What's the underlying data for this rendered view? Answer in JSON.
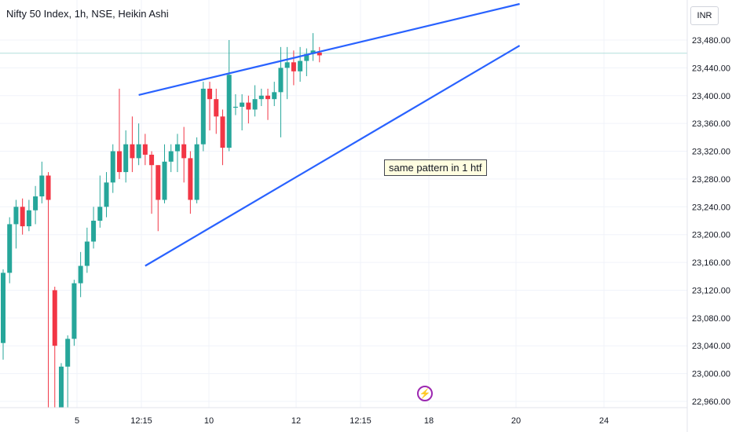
{
  "header": {
    "title": "Nifty 50 Index, 1h, NSE, Heikin Ashi",
    "currency": "INR"
  },
  "annotation": {
    "note": "same pattern in 1 htf"
  },
  "event_icon": "lightning-bolt-icon",
  "colors": {
    "up": "#26a69a",
    "down": "#f23645",
    "trendline": "#2962ff",
    "grid": "#f0f3fa",
    "axis_text": "#131722",
    "price_line": "#b2dfdb",
    "event": "#9c27b0"
  },
  "chart_data": {
    "type": "candlestick",
    "title": "Nifty 50 Index, 1h, NSE, Heikin Ashi",
    "x_ticks": [
      "5",
      "12:15",
      "10",
      "12",
      "12:15",
      "18",
      "20",
      "24"
    ],
    "y_ticks": [
      23480,
      23440,
      23400,
      23360,
      23320,
      23280,
      23240,
      23200,
      23160,
      23120,
      23080,
      23040,
      23000,
      22960
    ],
    "y_tick_labels": [
      "23,480.00",
      "23,440.00",
      "23,400.00",
      "23,360.00",
      "23,320.00",
      "23,280.00",
      "23,240.00",
      "23,200.00",
      "23,160.00",
      "23,120.00",
      "23,080.00",
      "23,040.00",
      "23,000.00",
      "22,960.00"
    ],
    "ylim": [
      22945,
      23540
    ],
    "grid": true,
    "current_price": 23461,
    "candles": [
      [
        23044,
        23145,
        23020,
        23150
      ],
      [
        23145,
        23215,
        23130,
        23225
      ],
      [
        23215,
        23240,
        23180,
        23250
      ],
      [
        23240,
        23212,
        23200,
        23252
      ],
      [
        23212,
        23235,
        23205,
        23250
      ],
      [
        23235,
        23255,
        23215,
        23270
      ],
      [
        23255,
        23285,
        23245,
        23305
      ],
      [
        23285,
        23250,
        22950,
        23290
      ],
      [
        23120,
        23040,
        22950,
        23125
      ],
      [
        22900,
        23010,
        22900,
        23015
      ],
      [
        23010,
        23050,
        22950,
        23055
      ],
      [
        23050,
        23130,
        23040,
        23135
      ],
      [
        23130,
        23155,
        23110,
        23175
      ],
      [
        23155,
        23190,
        23145,
        23210
      ],
      [
        23190,
        23220,
        23180,
        23240
      ],
      [
        23220,
        23240,
        23210,
        23285
      ],
      [
        23240,
        23275,
        23225,
        23290
      ],
      [
        23275,
        23320,
        23260,
        23330
      ],
      [
        23320,
        23290,
        23280,
        23410
      ],
      [
        23290,
        23330,
        23275,
        23350
      ],
      [
        23330,
        23310,
        23290,
        23370
      ],
      [
        23310,
        23330,
        23300,
        23360
      ],
      [
        23330,
        23315,
        23300,
        23345
      ],
      [
        23315,
        23300,
        23230,
        23320
      ],
      [
        23300,
        23250,
        23205,
        23300
      ],
      [
        23250,
        23305,
        23245,
        23330
      ],
      [
        23305,
        23320,
        23290,
        23330
      ],
      [
        23320,
        23330,
        23290,
        23345
      ],
      [
        23330,
        23310,
        23275,
        23355
      ],
      [
        23310,
        23250,
        23230,
        23320
      ],
      [
        23250,
        23330,
        23245,
        23340
      ],
      [
        23330,
        23410,
        23320,
        23420
      ],
      [
        23410,
        23395,
        23350,
        23420
      ],
      [
        23395,
        23370,
        23345,
        23410
      ],
      [
        23370,
        23325,
        23300,
        23380
      ],
      [
        23325,
        23430,
        23320,
        23480
      ],
      [
        23384,
        23384,
        23372,
        23402
      ],
      [
        23384,
        23390,
        23350,
        23402
      ],
      [
        23390,
        23380,
        23360,
        23400
      ],
      [
        23380,
        23395,
        23370,
        23415
      ],
      [
        23395,
        23400,
        23385,
        23410
      ],
      [
        23400,
        23395,
        23365,
        23410
      ],
      [
        23395,
        23405,
        23385,
        23420
      ],
      [
        23405,
        23440,
        23340,
        23470
      ],
      [
        23440,
        23448,
        23395,
        23470
      ],
      [
        23448,
        23435,
        23415,
        23465
      ],
      [
        23435,
        23450,
        23420,
        23470
      ],
      [
        23450,
        23460,
        23428,
        23468
      ],
      [
        23460,
        23465,
        23450,
        23490
      ],
      [
        23462,
        23458,
        23448,
        23470
      ]
    ],
    "trendlines": [
      {
        "from": [
          21,
          23401
        ],
        "to": [
          80,
          23532
        ]
      },
      {
        "from": [
          22,
          23155
        ],
        "to": [
          80,
          23472
        ]
      }
    ]
  }
}
